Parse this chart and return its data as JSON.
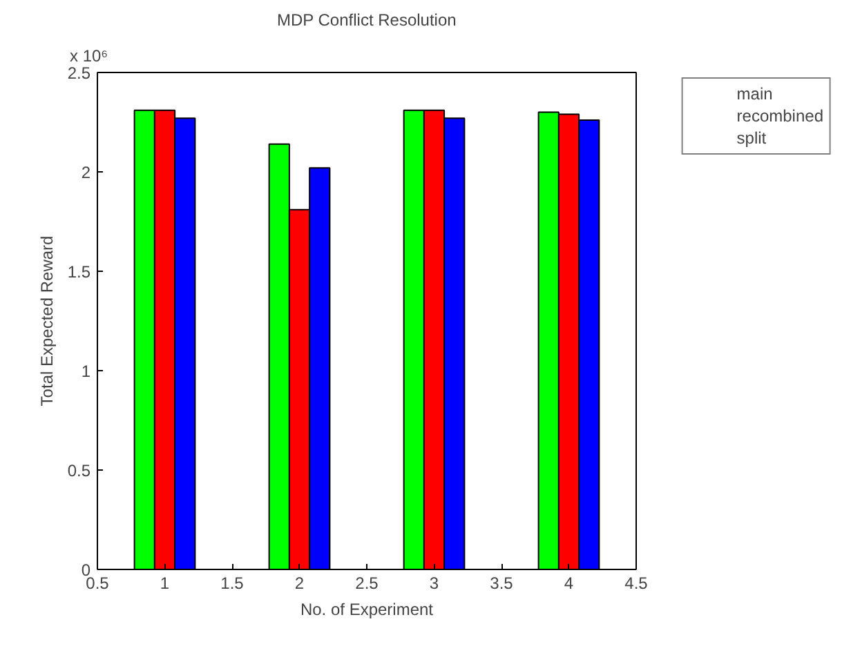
{
  "chart_data": {
    "type": "bar",
    "title": "MDP Conflict Resolution",
    "xlabel": "No. of Experiment",
    "ylabel": "Total Expected Reward",
    "annotations": [
      "x 10⁶"
    ],
    "x": [
      1,
      2,
      3,
      4
    ],
    "series": [
      {
        "name": "main",
        "color": "#00ff00",
        "values": [
          2.31,
          2.14,
          2.31,
          2.3
        ]
      },
      {
        "name": "recombined",
        "color": "#ff0000",
        "values": [
          2.31,
          1.81,
          2.31,
          2.29
        ]
      },
      {
        "name": "split",
        "color": "#0000ff",
        "values": [
          2.27,
          2.02,
          2.27,
          2.26
        ]
      }
    ],
    "xlim": [
      0.5,
      4.5
    ],
    "xticks": [
      0.5,
      1,
      1.5,
      2,
      2.5,
      3,
      3.5,
      4,
      4.5
    ],
    "ylim": [
      0,
      2.5
    ],
    "yticks": [
      0,
      0.5,
      1,
      1.5,
      2,
      2.5
    ],
    "grid": false,
    "legend": "top right"
  }
}
